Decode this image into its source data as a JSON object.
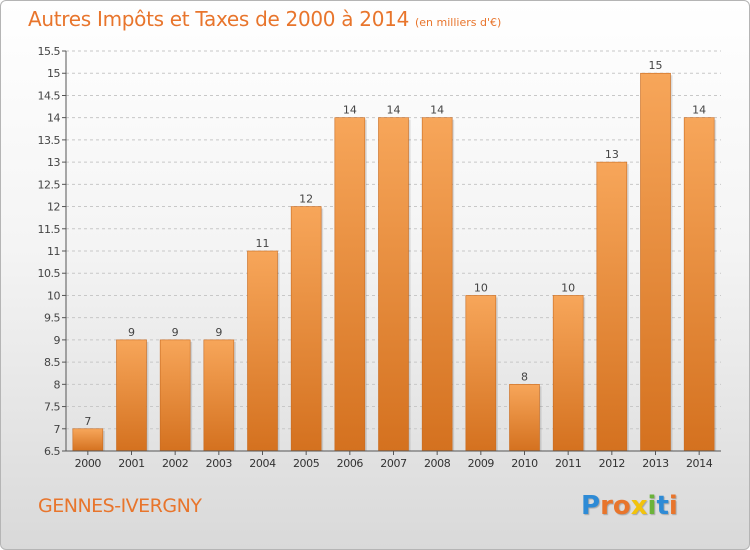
{
  "header": {
    "title": "Autres Impôts et Taxes de 2000 à 2014",
    "unit": "(en milliers d'€)"
  },
  "footer": {
    "commune": "GENNES-IVERGNY",
    "brand": "Proxiti",
    "brand_colors": [
      "#2e8bd6",
      "#e8752c",
      "#e8752c",
      "#f2c30c",
      "#6bb33a",
      "#2e8bd6",
      "#e8752c"
    ]
  },
  "colors": {
    "bar_light": "#f7a65a",
    "bar_dark": "#d4711f",
    "accent": "#e8752c",
    "grid": "#c8c8c8",
    "axis": "#555555"
  },
  "chart_data": {
    "type": "bar",
    "title": "Autres Impôts et Taxes de 2000 à 2014",
    "subtitle": "(en milliers d'€)",
    "xlabel": "",
    "ylabel": "",
    "categories": [
      "2000",
      "2001",
      "2002",
      "2003",
      "2004",
      "2005",
      "2006",
      "2007",
      "2008",
      "2009",
      "2010",
      "2011",
      "2012",
      "2013",
      "2014"
    ],
    "values": [
      7,
      9,
      9,
      9,
      11,
      12,
      14,
      14,
      14,
      10,
      8,
      10,
      13,
      15,
      14
    ],
    "data_labels": [
      "7",
      "9",
      "9",
      "9",
      "11",
      "12",
      "14",
      "14",
      "14",
      "10",
      "8",
      "10",
      "13",
      "15",
      "14"
    ],
    "ylim": [
      6.5,
      15.5
    ],
    "yticks": [
      6.5,
      7,
      7.5,
      8,
      8.5,
      9,
      9.5,
      10,
      10.5,
      11,
      11.5,
      12,
      12.5,
      13,
      13.5,
      14,
      14.5,
      15,
      15.5
    ],
    "ytick_labels": [
      "6.5",
      "7",
      "7.5",
      "8",
      "8.5",
      "9",
      "9.5",
      "10",
      "10.5",
      "11",
      "11.5",
      "12",
      "12.5",
      "13",
      "13.5",
      "14",
      "14.5",
      "15",
      "15.5"
    ],
    "grid": "horizontal dashed",
    "legend": "none"
  }
}
